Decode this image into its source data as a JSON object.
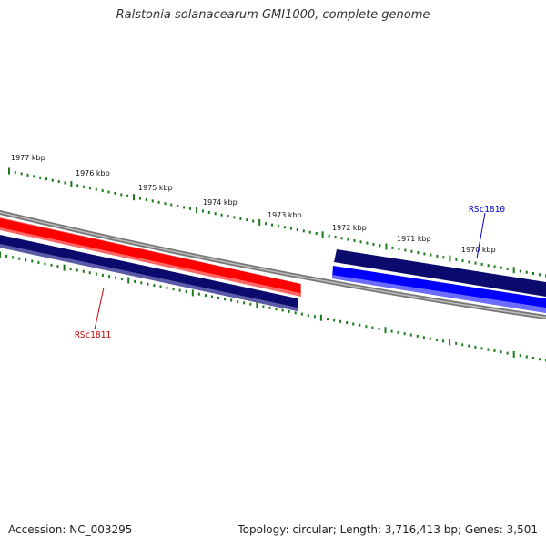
{
  "title": "Ralstonia solanacearum GMI1000, complete genome",
  "footer": {
    "accession": "Accession: NC_003295",
    "summary": "Topology: circular; Length: 3,716,413 bp; Genes: 3,501"
  },
  "ruler": {
    "unit": "kbp",
    "labeled_ticks": [
      "1977 kbp",
      "1976 kbp",
      "1975 kbp",
      "1974 kbp",
      "1973 kbp",
      "1972 kbp",
      "1971 kbp",
      "1970 kbp"
    ],
    "tick_color": "#1a7a1a"
  },
  "genes": [
    {
      "name": "RSc1811",
      "strand": "forward",
      "color": "#ff0000",
      "label_color": "#cc0000"
    },
    {
      "name": "RSc1810",
      "strand": "reverse",
      "color": "#0000ff",
      "label_color": "#0000cc"
    }
  ],
  "colors": {
    "backbone": "#777777",
    "navy": "#0b0b6e",
    "tick": "#1a7a1a"
  }
}
